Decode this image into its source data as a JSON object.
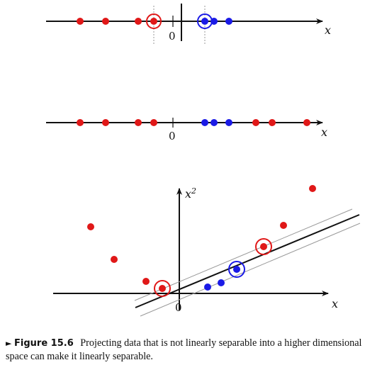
{
  "figure": {
    "x_label": "x",
    "zero_label": "0",
    "y2_label": "x",
    "y2_superscript": "2"
  },
  "caption": {
    "marker": "►",
    "label": "Figure 15.6",
    "text": "Projecting data that is not linearly separable into a higher dimensional space can make it linearly separable."
  },
  "colors": {
    "class_a": "#e01818",
    "class_b": "#1a1ae6",
    "axis": "#111111",
    "margin": "#999999"
  },
  "chart_data": [
    {
      "type": "scatter",
      "xlabel": "x",
      "series": [
        {
          "color": "#e01818",
          "x": [
            -5.6,
            -4.2,
            -2.0,
            -1.1
          ]
        },
        {
          "color": "#1a1ae6",
          "x": [
            1.9,
            2.5,
            3.4
          ]
        }
      ],
      "support_vectors": [
        -1.1,
        1.9
      ],
      "decision_boundary": 0.5
    },
    {
      "type": "scatter",
      "xlabel": "x",
      "series": [
        {
          "color": "#e01818",
          "x": [
            -5.6,
            -4.2,
            -2.0,
            -1.1,
            5.0,
            6.0,
            8.0
          ]
        },
        {
          "color": "#1a1ae6",
          "x": [
            1.9,
            2.5,
            3.4
          ]
        }
      ]
    },
    {
      "type": "scatter",
      "xlabel": "x",
      "ylabel": "x^2",
      "series": [
        {
          "color": "#e01818",
          "points": [
            [
              -5.6,
              31.4
            ],
            [
              -4.2,
              17.6
            ],
            [
              -2.0,
              4.0
            ],
            [
              -1.1,
              1.2
            ],
            [
              5.0,
              25.0
            ],
            [
              6.0,
              36.0
            ],
            [
              8.0,
              64.0
            ]
          ]
        },
        {
          "color": "#1a1ae6",
          "points": [
            [
              1.9,
              3.6
            ],
            [
              2.5,
              6.3
            ],
            [
              3.4,
              11.6
            ]
          ]
        }
      ],
      "support_vectors": [
        [
          -1.1,
          1.2
        ],
        [
          3.4,
          11.6
        ],
        [
          5.0,
          25.0
        ]
      ]
    }
  ]
}
